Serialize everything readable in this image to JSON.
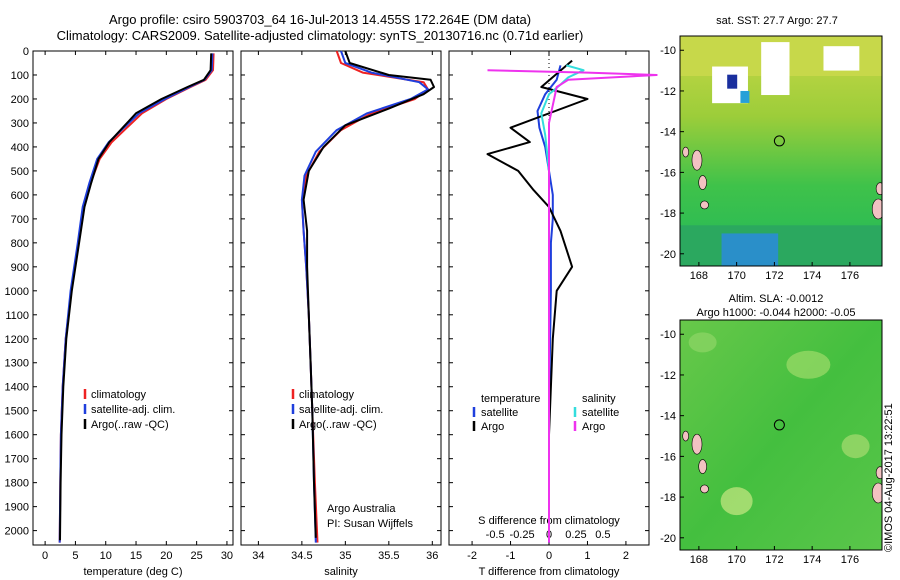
{
  "header": {
    "line1": "Argo profile: csiro 5903703_64 16-Jul-2013 14.455S 172.264E (DM data)",
    "line2": "Climatology: CARS2009. Satellite-adjusted climatology: synTS_20130716.nc (0.71d earlier)"
  },
  "colors": {
    "climatology": "#ee2222",
    "satellite": "#1f3fdd",
    "argo": "#000000",
    "sal_satellite": "#33dddd",
    "sal_argo": "#ee33ee",
    "map_land": "#f2c2c2"
  },
  "chart_data": [
    {
      "type": "line",
      "xlabel": "temperature (deg C)",
      "xlim": [
        -2,
        31
      ],
      "ylim": [
        2060,
        0
      ],
      "xticks": [
        0,
        5,
        10,
        15,
        20,
        25,
        30
      ],
      "yticks": [
        0,
        100,
        200,
        300,
        400,
        500,
        600,
        700,
        800,
        900,
        1000,
        1100,
        1200,
        1300,
        1400,
        1500,
        1600,
        1700,
        1800,
        1900,
        2000
      ],
      "legend": [
        "climatology",
        "satellite-adj. clim.",
        "Argo(..raw -QC)"
      ],
      "series": [
        {
          "name": "climatology",
          "x": [
            27.8,
            27.7,
            26.5,
            24,
            20,
            16,
            13.5,
            11,
            9,
            7.5,
            6.3,
            5.5,
            4.3,
            3.4,
            2.9,
            2.6,
            2.5,
            2.4
          ],
          "y": [
            10,
            80,
            120,
            150,
            200,
            260,
            320,
            380,
            450,
            550,
            650,
            800,
            1000,
            1200,
            1400,
            1600,
            1800,
            2050
          ]
        },
        {
          "name": "satellite-adj. clim.",
          "x": [
            27.6,
            27.5,
            26.3,
            23.8,
            19.8,
            15.5,
            13,
            10.5,
            8.6,
            7.3,
            6.2,
            5.4,
            4.2,
            3.4,
            2.9,
            2.6,
            2.5,
            2.4
          ],
          "y": [
            10,
            80,
            120,
            150,
            200,
            260,
            320,
            380,
            450,
            550,
            650,
            800,
            1000,
            1200,
            1400,
            1600,
            1800,
            2050
          ]
        },
        {
          "name": "Argo(..raw -QC)",
          "x": [
            27.4,
            27.3,
            26.2,
            23.5,
            19.2,
            15,
            12.8,
            10.6,
            8.8,
            7.6,
            6.5,
            5.6,
            4.4,
            3.5,
            3.0,
            2.7,
            2.55,
            2.45
          ],
          "y": [
            10,
            80,
            120,
            150,
            200,
            260,
            320,
            380,
            450,
            550,
            650,
            800,
            1000,
            1200,
            1400,
            1600,
            1800,
            2040
          ]
        }
      ]
    },
    {
      "type": "line",
      "xlabel": "salinity",
      "xlim": [
        33.8,
        36.1
      ],
      "ylim": [
        2060,
        0
      ],
      "xticks": [
        34,
        34.5,
        35,
        35.5,
        36
      ],
      "legend": [
        "climatology",
        "satellite-adj. clim.",
        "Argo(..raw -QC)"
      ],
      "annotation": [
        "Argo Australia",
        "PI: Susan Wijffels"
      ],
      "series": [
        {
          "name": "climatology",
          "x": [
            34.9,
            34.95,
            35.2,
            35.9,
            35.95,
            35.8,
            35.3,
            34.95,
            34.7,
            34.55,
            34.5,
            34.52,
            34.55,
            34.58,
            34.6,
            34.62,
            34.65,
            34.68
          ],
          "y": [
            0,
            50,
            90,
            130,
            160,
            200,
            260,
            330,
            420,
            520,
            620,
            750,
            900,
            1100,
            1300,
            1500,
            1800,
            2050
          ]
        },
        {
          "name": "satellite-adj. clim.",
          "x": [
            34.95,
            35.0,
            35.3,
            35.85,
            35.95,
            35.75,
            35.25,
            34.9,
            34.66,
            34.53,
            34.5,
            34.52,
            34.55,
            34.58,
            34.6,
            34.62,
            34.64,
            34.66
          ],
          "y": [
            0,
            50,
            90,
            130,
            160,
            200,
            260,
            330,
            420,
            520,
            620,
            750,
            900,
            1100,
            1300,
            1500,
            1800,
            2050
          ]
        },
        {
          "name": "Argo(..raw -QC)",
          "x": [
            35.0,
            35.05,
            35.5,
            35.98,
            36.02,
            35.9,
            35.5,
            35.0,
            34.75,
            34.58,
            34.52,
            34.56,
            34.56,
            34.58,
            34.6,
            34.62,
            34.64,
            34.66
          ],
          "y": [
            0,
            50,
            100,
            120,
            150,
            180,
            240,
            310,
            400,
            500,
            620,
            750,
            900,
            1100,
            1300,
            1500,
            1800,
            2030
          ]
        }
      ]
    },
    {
      "type": "line",
      "xlabel": "T difference from climatology",
      "xlabel_top": "S difference from climatology",
      "xlim": [
        -2.6,
        2.6
      ],
      "ylim": [
        2060,
        0
      ],
      "xticks_bottom": [
        -2,
        -1,
        0,
        1,
        2
      ],
      "xticks_top": [
        "-0.5",
        "-0.25",
        "0",
        "0.25",
        "0.5"
      ],
      "legend_headers": [
        "temperature",
        "salinity"
      ],
      "legend": [
        "satellite",
        "Argo",
        "satellite",
        "Argo"
      ],
      "series": [
        {
          "name": "temperature satellite",
          "x": [
            0.3,
            0.2,
            -0.1,
            -0.3,
            -0.25,
            -0.1,
            0,
            0.1,
            0.1,
            0.05,
            0.05,
            0,
            0
          ],
          "y": [
            60,
            120,
            180,
            250,
            320,
            400,
            500,
            600,
            700,
            800,
            1000,
            1500,
            2050
          ]
        },
        {
          "name": "temperature Argo",
          "x": [
            0.6,
            -0.2,
            1.0,
            -1.0,
            -0.5,
            -1.6,
            -0.8,
            -0.4,
            0,
            0.3,
            0.6,
            0.2,
            0.1,
            0,
            0
          ],
          "y": [
            40,
            150,
            200,
            320,
            380,
            430,
            500,
            580,
            650,
            750,
            900,
            1000,
            1200,
            1600,
            2050
          ]
        },
        {
          "name": "salinity satellite",
          "x": [
            0.45,
            0.9,
            0.5,
            0.3,
            0,
            -0.2,
            -0.1,
            0,
            0,
            0
          ],
          "y": [
            60,
            80,
            110,
            140,
            180,
            260,
            350,
            500,
            800,
            2050
          ]
        },
        {
          "name": "salinity Argo",
          "x": [
            -1.6,
            1.0,
            2.8,
            0.5,
            0.2,
            0,
            0,
            0
          ],
          "y": [
            80,
            90,
            100,
            120,
            150,
            300,
            800,
            2050
          ]
        }
      ]
    }
  ],
  "maps": [
    {
      "title": "sat. SST: 27.7 Argo: 27.7",
      "xticks": [
        "168",
        "170",
        "172",
        "174",
        "176"
      ],
      "yticks": [
        "-10",
        "-12",
        "-14",
        "-16",
        "-18",
        "-20"
      ],
      "xlim": [
        167,
        177.7
      ],
      "ylim": [
        -9.3,
        -20.6
      ],
      "marker": {
        "lon": 172.264,
        "lat": -14.455
      },
      "land_gaps": [
        [
          171.3,
          -9.6,
          172.8,
          -12.2
        ],
        [
          174.6,
          -9.8,
          176.5,
          -11.0
        ],
        [
          168.7,
          -10.8,
          170.6,
          -12.6
        ]
      ]
    },
    {
      "title_line1": "Altim. SLA: -0.0012",
      "title_line2": "Argo h1000: -0.044 h2000: -0.05",
      "xticks": [
        "168",
        "170",
        "172",
        "174",
        "176"
      ],
      "yticks": [
        "-10",
        "-12",
        "-14",
        "-16",
        "-18",
        "-20"
      ],
      "xlim": [
        167,
        177.7
      ],
      "ylim": [
        -9.3,
        -20.6
      ],
      "marker": {
        "lon": 172.264,
        "lat": -14.455
      }
    }
  ],
  "footer": {
    "stamp": "©IMOS 04-Aug-2017 13:22:51"
  }
}
